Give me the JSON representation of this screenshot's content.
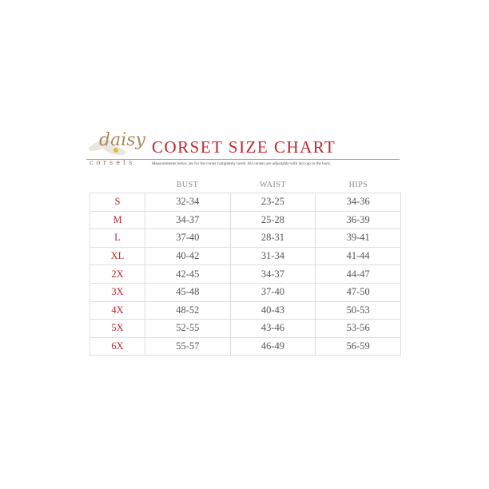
{
  "brand": {
    "logo_script": "daisy",
    "logo_word": "corsets"
  },
  "title": "CORSET SIZE CHART",
  "subtitle": "Measurements below are for the corset completely laced.  All corsets are adjustable with lace-up in the back.",
  "columns": [
    "BUST",
    "WAIST",
    "HIPS"
  ],
  "rows": [
    {
      "size": "S",
      "bust": "32-34",
      "waist": "23-25",
      "hips": "34-36"
    },
    {
      "size": "M",
      "bust": "34-37",
      "waist": "25-28",
      "hips": "36-39"
    },
    {
      "size": "L",
      "bust": "37-40",
      "waist": "28-31",
      "hips": "39-41"
    },
    {
      "size": "XL",
      "bust": "40-42",
      "waist": "31-34",
      "hips": "41-44"
    },
    {
      "size": "2X",
      "bust": "42-45",
      "waist": "34-37",
      "hips": "44-47"
    },
    {
      "size": "3X",
      "bust": "45-48",
      "waist": "37-40",
      "hips": "47-50"
    },
    {
      "size": "4X",
      "bust": "48-52",
      "waist": "40-43",
      "hips": "50-53"
    },
    {
      "size": "5X",
      "bust": "52-55",
      "waist": "43-46",
      "hips": "53-56"
    },
    {
      "size": "6X",
      "bust": "55-57",
      "waist": "46-49",
      "hips": "56-59"
    }
  ],
  "colors": {
    "accent": "#c2242d",
    "text": "#555555"
  }
}
